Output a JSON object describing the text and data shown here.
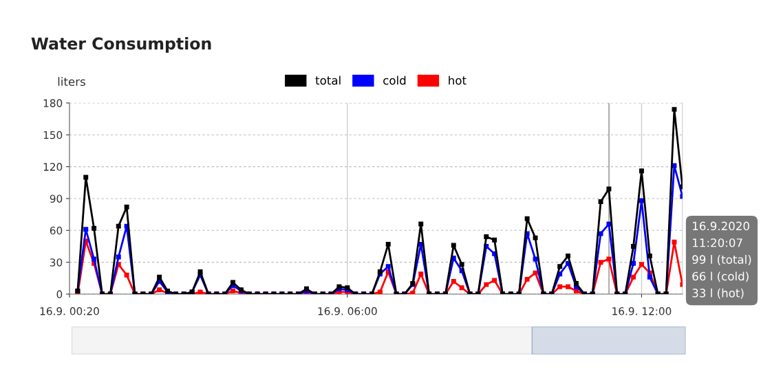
{
  "chart_data": {
    "type": "line",
    "title": "Water Consumption",
    "ylabel": "liters",
    "x": [
      "2020-09-16T00:30",
      "2020-09-16T00:40",
      "2020-09-16T00:50",
      "2020-09-16T01:00",
      "2020-09-16T01:10",
      "2020-09-16T01:20",
      "2020-09-16T01:30",
      "2020-09-16T01:40",
      "2020-09-16T01:50",
      "2020-09-16T02:00",
      "2020-09-16T02:10",
      "2020-09-16T02:20",
      "2020-09-16T02:30",
      "2020-09-16T02:40",
      "2020-09-16T02:50",
      "2020-09-16T03:00",
      "2020-09-16T03:10",
      "2020-09-16T03:20",
      "2020-09-16T03:30",
      "2020-09-16T03:40",
      "2020-09-16T03:50",
      "2020-09-16T04:00",
      "2020-09-16T04:10",
      "2020-09-16T04:20",
      "2020-09-16T04:30",
      "2020-09-16T04:40",
      "2020-09-16T04:50",
      "2020-09-16T05:00",
      "2020-09-16T05:10",
      "2020-09-16T05:20",
      "2020-09-16T05:30",
      "2020-09-16T05:40",
      "2020-09-16T05:50",
      "2020-09-16T06:00",
      "2020-09-16T06:10",
      "2020-09-16T06:20",
      "2020-09-16T06:30",
      "2020-09-16T06:40",
      "2020-09-16T06:50",
      "2020-09-16T07:00",
      "2020-09-16T07:10",
      "2020-09-16T07:20",
      "2020-09-16T07:30",
      "2020-09-16T07:40",
      "2020-09-16T07:50",
      "2020-09-16T08:00",
      "2020-09-16T08:10",
      "2020-09-16T08:20",
      "2020-09-16T08:30",
      "2020-09-16T08:40",
      "2020-09-16T08:50",
      "2020-09-16T09:00",
      "2020-09-16T09:10",
      "2020-09-16T09:20",
      "2020-09-16T09:30",
      "2020-09-16T09:40",
      "2020-09-16T09:50",
      "2020-09-16T10:00",
      "2020-09-16T10:10",
      "2020-09-16T10:20",
      "2020-09-16T10:30",
      "2020-09-16T10:40",
      "2020-09-16T10:50",
      "2020-09-16T11:00",
      "2020-09-16T11:10",
      "2020-09-16T11:20",
      "2020-09-16T11:30",
      "2020-09-16T11:40",
      "2020-09-16T11:50",
      "2020-09-16T12:00",
      "2020-09-16T12:10",
      "2020-09-16T12:20",
      "2020-09-16T12:30",
      "2020-09-16T12:40",
      "2020-09-16T12:50"
    ],
    "series": [
      {
        "name": "total",
        "color": "#000000",
        "values": [
          3,
          110,
          62,
          0,
          0,
          64,
          82,
          0,
          0,
          0,
          16,
          3,
          0,
          0,
          2,
          21,
          0,
          0,
          0,
          11,
          4,
          0,
          0,
          0,
          0,
          0,
          0,
          0,
          5,
          0,
          0,
          0,
          7,
          6,
          0,
          0,
          0,
          21,
          47,
          0,
          0,
          10,
          66,
          0,
          0,
          0,
          46,
          28,
          0,
          0,
          54,
          51,
          0,
          0,
          0,
          71,
          53,
          0,
          0,
          26,
          36,
          10,
          0,
          0,
          87,
          99,
          0,
          0,
          45,
          116,
          36,
          0,
          0,
          174,
          101
        ]
      },
      {
        "name": "cold",
        "color": "#0000ff",
        "values": [
          3,
          61,
          33,
          0,
          0,
          35,
          64,
          0,
          0,
          0,
          12,
          2,
          0,
          0,
          2,
          18,
          0,
          0,
          0,
          8,
          3,
          0,
          0,
          0,
          0,
          0,
          0,
          0,
          3,
          0,
          0,
          0,
          5,
          4,
          0,
          0,
          0,
          19,
          26,
          0,
          0,
          9,
          47,
          0,
          0,
          0,
          34,
          22,
          0,
          0,
          45,
          38,
          0,
          0,
          0,
          57,
          33,
          0,
          0,
          19,
          29,
          7,
          0,
          0,
          57,
          66,
          0,
          0,
          29,
          88,
          16,
          0,
          0,
          121,
          92
        ]
      },
      {
        "name": "hot",
        "color": "#ff0000",
        "values": [
          0,
          50,
          29,
          0,
          0,
          28,
          18,
          0,
          0,
          0,
          4,
          1,
          0,
          0,
          0,
          2,
          0,
          0,
          0,
          3,
          1,
          0,
          0,
          0,
          0,
          0,
          0,
          0,
          2,
          0,
          0,
          0,
          2,
          2,
          0,
          0,
          0,
          2,
          21,
          0,
          0,
          1,
          19,
          0,
          0,
          0,
          12,
          6,
          0,
          0,
          9,
          13,
          0,
          0,
          0,
          14,
          20,
          0,
          0,
          7,
          7,
          3,
          0,
          0,
          30,
          33,
          0,
          0,
          16,
          28,
          20,
          0,
          0,
          49,
          9
        ]
      }
    ],
    "xlim": [
      "2020-09-16T00:20",
      "2020-09-16T12:50"
    ],
    "xticks": [
      {
        "value": "2020-09-16T00:20",
        "label": "16.9. 00:20"
      },
      {
        "value": "2020-09-16T06:00",
        "label": "16.9. 06:00"
      },
      {
        "value": "2020-09-16T12:00",
        "label": "16.9. 12:00"
      }
    ],
    "ylim": [
      0,
      180
    ],
    "yticks": [
      0,
      30,
      60,
      90,
      120,
      150,
      180
    ],
    "grid": true,
    "legend": "top",
    "marker": "square",
    "line_style": "solid",
    "ref_lines": [
      {
        "axis": "x",
        "value": "2020-09-16T11:20:07",
        "label": null,
        "color": "#888888"
      }
    ],
    "annotations": [
      "16.9.2020\n11:20:07\n99 l (total)\n66 l (cold)\n33 l (hot)"
    ]
  }
}
